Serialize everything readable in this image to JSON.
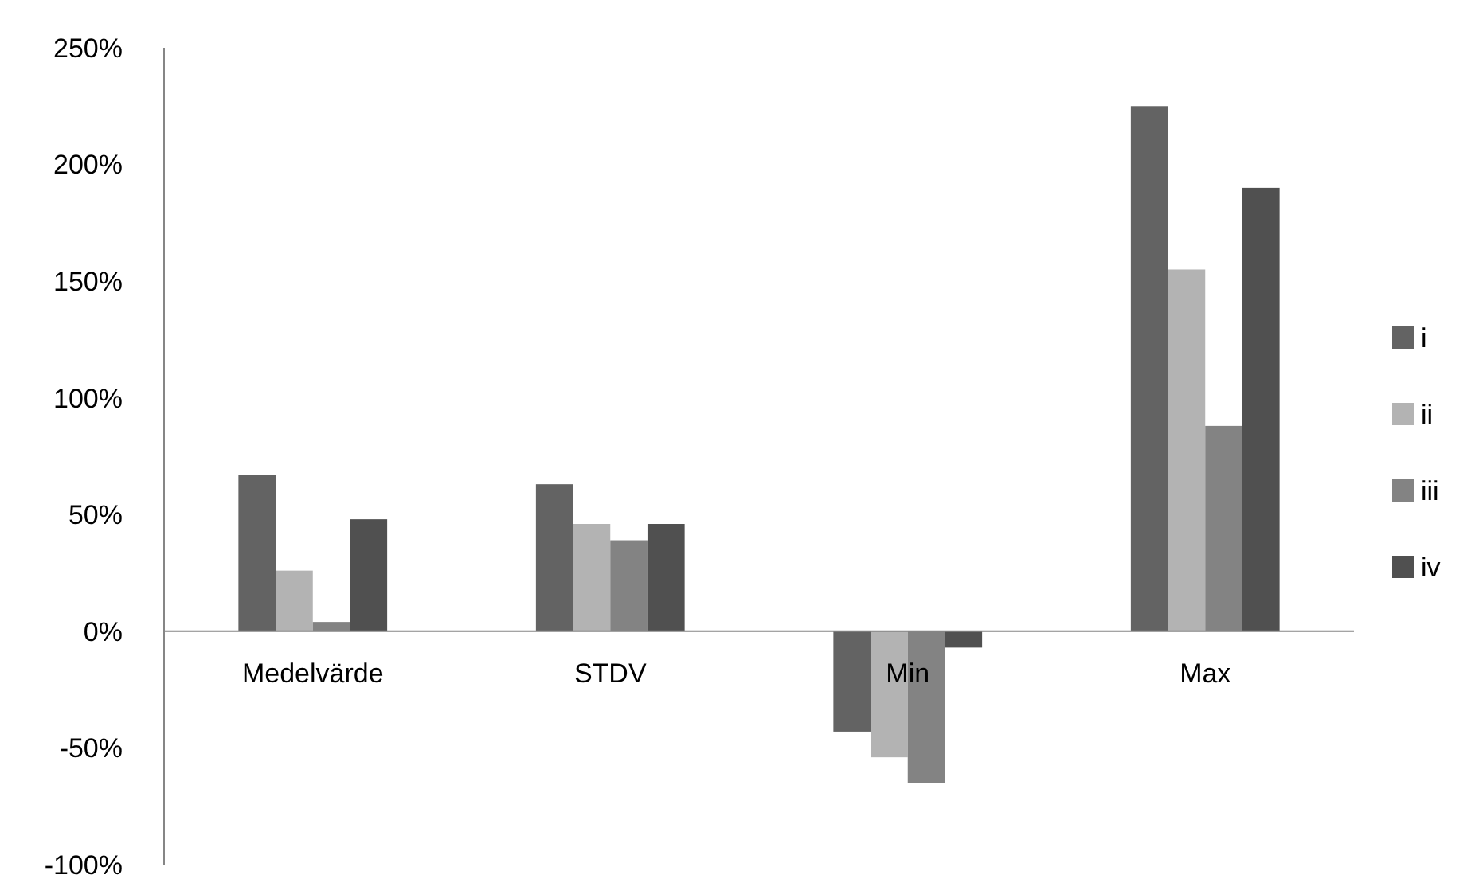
{
  "chart_data": {
    "type": "bar",
    "categories": [
      "Medelvärde",
      "STDV",
      "Min",
      "Max"
    ],
    "series": [
      {
        "name": "i",
        "color": "#636363",
        "values": [
          67,
          63,
          -43,
          225
        ]
      },
      {
        "name": "ii",
        "color": "#b3b3b3",
        "values": [
          26,
          46,
          -54,
          155
        ]
      },
      {
        "name": "iii",
        "color": "#838383",
        "values": [
          4,
          39,
          -65,
          88
        ]
      },
      {
        "name": "iv",
        "color": "#505050",
        "values": [
          48,
          46,
          -7,
          190
        ]
      }
    ],
    "ylim": [
      -100,
      250
    ],
    "yticks": [
      {
        "value": -100,
        "label": "-100%"
      },
      {
        "value": -50,
        "label": "-50%"
      },
      {
        "value": 0,
        "label": "0%"
      },
      {
        "value": 50,
        "label": "50%"
      },
      {
        "value": 100,
        "label": "100%"
      },
      {
        "value": 150,
        "label": "150%"
      },
      {
        "value": 200,
        "label": "200%"
      },
      {
        "value": 250,
        "label": "250%"
      }
    ],
    "grid": false,
    "legend": "right"
  }
}
